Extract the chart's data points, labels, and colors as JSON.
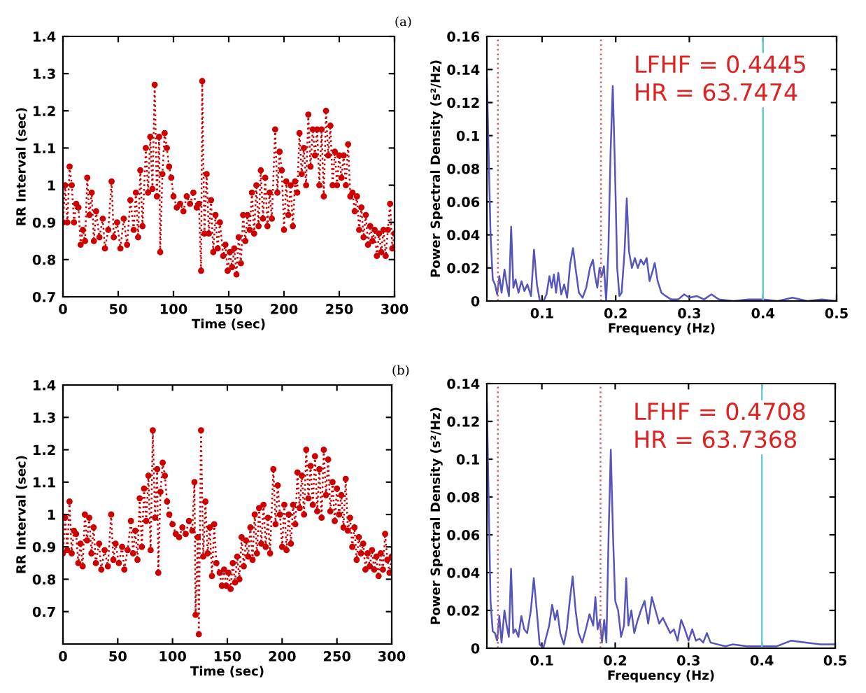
{
  "chart_data": [
    {
      "type": "line",
      "xlabel": "Time (sec)",
      "ylabel": "RR Interval (sec)",
      "annotations": [
        "(a)"
      ],
      "xlim": [
        0,
        300
      ],
      "ylim": [
        0.7,
        1.4
      ],
      "xticks": [
        0,
        50,
        100,
        150,
        200,
        250,
        300
      ],
      "yticks": [
        0.7,
        0.8,
        0.9,
        1,
        1.1,
        1.2,
        1.3,
        1.4
      ],
      "grid": false,
      "marker": "circle",
      "line_style": "dotted",
      "series": [
        {
          "color": "#cc0000",
          "x": [
            0,
            2,
            4,
            6,
            8,
            10,
            12,
            14,
            16,
            18,
            20,
            22,
            24,
            26,
            28,
            30,
            33,
            36,
            38,
            41,
            44,
            46,
            49,
            52,
            55,
            58,
            61,
            64,
            66,
            68,
            70,
            72,
            75,
            77,
            79,
            81,
            83,
            85,
            87,
            88,
            90,
            92,
            94,
            96,
            98,
            100,
            103,
            106,
            109,
            112,
            115,
            118,
            121,
            123,
            125,
            126,
            128,
            130,
            132,
            134,
            136,
            138,
            140,
            142,
            145,
            147,
            149,
            151,
            153,
            155,
            157,
            159,
            161,
            163,
            165,
            167,
            169,
            171,
            173,
            175,
            177,
            179,
            181,
            183,
            185,
            187,
            189,
            192,
            194,
            196,
            198,
            200,
            202,
            204,
            206,
            208,
            210,
            212,
            214,
            216,
            218,
            220,
            222,
            224,
            226,
            228,
            230,
            232,
            234,
            236,
            238,
            240,
            242,
            244,
            246,
            248,
            250,
            252,
            254,
            256,
            258,
            260,
            262,
            264,
            266,
            268,
            270,
            272,
            274,
            276,
            278,
            280,
            282,
            284,
            286,
            288,
            290,
            292,
            294,
            296,
            298,
            300
          ],
          "values": [
            0.9,
            1.0,
            0.9,
            1.05,
            1.0,
            0.9,
            0.95,
            0.94,
            0.84,
            0.88,
            0.85,
            1.02,
            0.92,
            0.98,
            0.85,
            0.93,
            0.86,
            0.91,
            0.83,
            0.88,
            1.01,
            0.86,
            0.9,
            0.83,
            0.91,
            0.84,
            0.96,
            0.88,
            0.98,
            0.86,
            1.04,
            0.89,
            1.1,
            0.98,
            1.13,
            0.99,
            1.27,
            0.97,
            1.13,
            0.82,
            1.03,
            1.14,
            1.1,
            1.05,
            1.02,
            0.97,
            0.94,
            0.95,
            0.93,
            0.97,
            0.95,
            0.98,
            0.94,
            0.95,
            0.77,
            1.28,
            0.87,
            1.03,
            0.87,
            0.96,
            0.82,
            0.92,
            0.83,
            0.9,
            0.81,
            0.84,
            0.77,
            0.82,
            0.78,
            0.83,
            0.76,
            0.86,
            0.79,
            0.92,
            0.85,
            0.92,
            0.88,
            0.98,
            0.87,
            1.0,
            0.89,
            1.04,
            0.91,
            1.02,
            0.89,
            0.98,
            0.91,
            1.15,
            0.98,
            1.09,
            1.04,
            0.88,
            1.01,
            0.92,
            1.0,
            0.89,
            1.01,
            0.98,
            1.14,
            1.03,
            1.1,
            1.0,
            1.19,
            1.05,
            1.15,
            1.08,
            1.15,
            1.0,
            1.15,
            0.97,
            1.2,
            1.08,
            1.16,
            1.0,
            1.09,
            1.0,
            1.08,
            1.02,
            1.08,
            1.0,
            1.11,
            0.97,
            0.98,
            0.93,
            0.97,
            0.88,
            0.94,
            0.86,
            0.92,
            0.84,
            0.89,
            0.85,
            0.88,
            0.81,
            0.87,
            0.82,
            0.88,
            0.81,
            0.88,
            0.95,
            0.83,
            0.87
          ]
        }
      ]
    },
    {
      "type": "line",
      "xlabel": "Frequency (Hz)",
      "ylabel": "Power Spectral Density (s²/Hz)",
      "annotations": [
        "LFHF = 0.4445\nHR = 63.7474"
      ],
      "xlim": [
        0.025,
        0.5
      ],
      "ylim": [
        0,
        0.16
      ],
      "xticks": [
        0.1,
        0.2,
        0.3,
        0.4,
        0.5
      ],
      "yticks": [
        0,
        0.02,
        0.04,
        0.06,
        0.08,
        0.1,
        0.12,
        0.14,
        0.16
      ],
      "grid": false,
      "line_style": "solid",
      "ref_lines": [
        {
          "axis": "x",
          "value": 0.04,
          "color": "#cc6666",
          "line_style": "dotted"
        },
        {
          "axis": "x",
          "value": 0.18,
          "color": "#cc6666",
          "line_style": "dotted"
        },
        {
          "axis": "x",
          "value": 0.4,
          "color": "#66cccc",
          "line_style": "solid"
        }
      ],
      "series": [
        {
          "color": "#5555bb",
          "x": [
            0.025,
            0.03,
            0.033,
            0.036,
            0.039,
            0.042,
            0.045,
            0.049,
            0.052,
            0.055,
            0.058,
            0.061,
            0.064,
            0.068,
            0.072,
            0.076,
            0.08,
            0.085,
            0.089,
            0.093,
            0.097,
            0.102,
            0.106,
            0.11,
            0.113,
            0.116,
            0.119,
            0.122,
            0.126,
            0.13,
            0.134,
            0.138,
            0.142,
            0.146,
            0.15,
            0.155,
            0.16,
            0.165,
            0.169,
            0.172,
            0.175,
            0.178,
            0.181,
            0.184,
            0.187,
            0.19,
            0.193,
            0.196,
            0.199,
            0.202,
            0.205,
            0.208,
            0.212,
            0.215,
            0.218,
            0.222,
            0.226,
            0.23,
            0.234,
            0.238,
            0.242,
            0.246,
            0.25,
            0.253,
            0.257,
            0.262,
            0.268,
            0.275,
            0.285,
            0.293,
            0.3,
            0.31,
            0.32,
            0.33,
            0.34,
            0.36,
            0.38,
            0.4,
            0.42,
            0.44,
            0.46,
            0.48,
            0.5
          ],
          "values": [
            0.135,
            0.04,
            0.013,
            0.01,
            0.004,
            0.015,
            0.005,
            0.019,
            0.01,
            0.003,
            0.045,
            0.008,
            0.013,
            0.005,
            0.012,
            0.006,
            0.01,
            0.003,
            0.031,
            0.01,
            0.0,
            0.0,
            0.004,
            0.015,
            0.008,
            0.016,
            0.005,
            0.017,
            0.004,
            0.01,
            0.002,
            0.022,
            0.032,
            0.018,
            0.005,
            0.002,
            0.008,
            0.02,
            0.025,
            0.015,
            0.008,
            0.02,
            0.015,
            0.021,
            0.0,
            0.03,
            0.09,
            0.13,
            0.08,
            0.02,
            0.003,
            0.005,
            0.03,
            0.062,
            0.03,
            0.02,
            0.026,
            0.02,
            0.025,
            0.022,
            0.026,
            0.012,
            0.018,
            0.023,
            0.012,
            0.005,
            0.003,
            0.001,
            0.001,
            0.004,
            0.002,
            0.003,
            0.001,
            0.004,
            0.001,
            0.0,
            0.001,
            0.001,
            0.0,
            0.002,
            0.0,
            0.001,
            0.0
          ]
        }
      ]
    },
    {
      "type": "line",
      "xlabel": "Time (sec)",
      "ylabel": "RR Interval (sec)",
      "annotations": [
        "(b)"
      ],
      "xlim": [
        0,
        300
      ],
      "ylim": [
        0.6,
        1.4
      ],
      "xticks": [
        0,
        50,
        100,
        150,
        200,
        250,
        300
      ],
      "yticks": [
        0.7,
        0.8,
        0.9,
        1,
        1.1,
        1.2,
        1.3,
        1.4
      ],
      "grid": false,
      "marker": "circle",
      "line_style": "dotted",
      "series": [
        {
          "color": "#cc0000",
          "x": [
            0,
            2,
            4,
            6,
            8,
            10,
            12,
            14,
            16,
            18,
            20,
            22,
            24,
            26,
            28,
            30,
            33,
            35,
            38,
            41,
            44,
            46,
            48,
            51,
            54,
            56,
            59,
            62,
            64,
            66,
            68,
            70,
            72,
            74,
            76,
            78,
            80,
            82,
            84,
            86,
            87,
            89,
            91,
            93,
            95,
            97,
            100,
            103,
            106,
            109,
            112,
            115,
            118,
            120,
            121,
            123,
            124,
            126,
            128,
            130,
            132,
            134,
            136,
            138,
            140,
            143,
            145,
            147,
            149,
            151,
            153,
            155,
            157,
            159,
            161,
            163,
            165,
            167,
            169,
            171,
            173,
            175,
            177,
            179,
            181,
            183,
            185,
            187,
            189,
            192,
            194,
            196,
            198,
            200,
            202,
            204,
            206,
            208,
            210,
            212,
            214,
            216,
            218,
            220,
            222,
            224,
            226,
            228,
            230,
            232,
            234,
            236,
            238,
            240,
            242,
            244,
            246,
            248,
            250,
            252,
            254,
            256,
            258,
            260,
            262,
            264,
            266,
            268,
            270,
            272,
            274,
            276,
            278,
            280,
            282,
            284,
            286,
            288,
            290,
            292,
            294,
            296,
            298,
            300
          ],
          "values": [
            0.88,
            0.99,
            0.89,
            1.04,
            0.88,
            0.95,
            0.94,
            0.85,
            0.91,
            0.84,
            1.0,
            0.92,
            0.99,
            0.88,
            0.96,
            0.85,
            0.91,
            0.83,
            0.89,
            0.84,
            1.0,
            0.86,
            0.91,
            0.85,
            0.9,
            0.83,
            0.89,
            0.98,
            0.88,
            0.95,
            0.86,
            1.05,
            0.9,
            1.08,
            0.98,
            1.12,
            0.89,
            1.26,
            0.99,
            1.14,
            0.82,
            1.07,
            1.16,
            1.12,
            1.04,
            1.0,
            0.97,
            0.94,
            0.93,
            0.96,
            0.94,
            0.98,
            0.95,
            1.1,
            0.69,
            0.93,
            0.63,
            1.26,
            0.87,
            1.04,
            0.88,
            0.96,
            0.81,
            0.97,
            0.85,
            0.82,
            0.78,
            0.83,
            0.78,
            0.82,
            0.77,
            0.85,
            0.79,
            0.87,
            0.8,
            0.93,
            0.84,
            0.92,
            0.87,
            0.96,
            0.86,
            1.0,
            0.88,
            1.02,
            0.91,
            1.03,
            0.9,
            0.99,
            0.88,
            1.14,
            0.97,
            1.09,
            1.0,
            0.9,
            1.03,
            0.89,
            1.0,
            0.91,
            1.03,
            0.97,
            1.13,
            1.02,
            1.12,
            1.0,
            1.2,
            1.05,
            1.15,
            1.03,
            1.18,
            1.01,
            1.14,
            0.99,
            1.2,
            1.06,
            1.17,
            1.01,
            1.1,
            0.98,
            1.08,
            1.0,
            1.06,
            0.96,
            1.11,
            0.95,
            0.99,
            0.9,
            0.96,
            0.86,
            0.93,
            0.88,
            0.91,
            0.83,
            0.88,
            0.84,
            0.89,
            0.83,
            0.87,
            0.81,
            0.88,
            0.83,
            0.94,
            0.86,
            0.82,
            0.87
          ]
        }
      ]
    },
    {
      "type": "line",
      "xlabel": "Frequency (Hz)",
      "ylabel": "Power Spectral Density (s²/Hz)",
      "annotations": [
        "LFHF = 0.4708\nHR = 63.7368"
      ],
      "xlim": [
        0.025,
        0.5
      ],
      "ylim": [
        0,
        0.14
      ],
      "xticks": [
        0.1,
        0.2,
        0.3,
        0.4,
        0.5
      ],
      "yticks": [
        0,
        0.02,
        0.04,
        0.06,
        0.08,
        0.1,
        0.12,
        0.14
      ],
      "grid": false,
      "line_style": "solid",
      "ref_lines": [
        {
          "axis": "x",
          "value": 0.04,
          "color": "#cc6666",
          "line_style": "dotted"
        },
        {
          "axis": "x",
          "value": 0.18,
          "color": "#cc6666",
          "line_style": "dotted"
        },
        {
          "axis": "x",
          "value": 0.4,
          "color": "#66cccc",
          "line_style": "solid"
        }
      ],
      "series": [
        {
          "color": "#5555bb",
          "x": [
            0.025,
            0.03,
            0.033,
            0.036,
            0.039,
            0.042,
            0.045,
            0.049,
            0.052,
            0.055,
            0.058,
            0.061,
            0.064,
            0.068,
            0.072,
            0.076,
            0.08,
            0.085,
            0.089,
            0.093,
            0.097,
            0.102,
            0.106,
            0.11,
            0.114,
            0.118,
            0.121,
            0.125,
            0.13,
            0.134,
            0.138,
            0.142,
            0.146,
            0.15,
            0.155,
            0.16,
            0.165,
            0.17,
            0.173,
            0.176,
            0.179,
            0.182,
            0.185,
            0.188,
            0.191,
            0.194,
            0.197,
            0.2,
            0.204,
            0.208,
            0.212,
            0.215,
            0.218,
            0.222,
            0.226,
            0.23,
            0.235,
            0.24,
            0.245,
            0.25,
            0.255,
            0.26,
            0.265,
            0.27,
            0.275,
            0.28,
            0.285,
            0.29,
            0.295,
            0.3,
            0.305,
            0.31,
            0.315,
            0.32,
            0.325,
            0.33,
            0.34,
            0.35,
            0.36,
            0.38,
            0.4,
            0.42,
            0.44,
            0.46,
            0.48,
            0.5
          ],
          "values": [
            0.13,
            0.025,
            0.009,
            0.008,
            0.004,
            0.017,
            0.003,
            0.02,
            0.012,
            0.006,
            0.042,
            0.008,
            0.01,
            0.006,
            0.017,
            0.01,
            0.008,
            0.02,
            0.037,
            0.02,
            0.002,
            0.0,
            0.006,
            0.012,
            0.023,
            0.015,
            0.02,
            0.008,
            0.002,
            0.01,
            0.025,
            0.038,
            0.02,
            0.008,
            0.003,
            0.01,
            0.018,
            0.012,
            0.027,
            0.01,
            0.015,
            0.003,
            0.015,
            0.003,
            0.06,
            0.105,
            0.06,
            0.025,
            0.02,
            0.006,
            0.012,
            0.037,
            0.012,
            0.02,
            0.008,
            0.014,
            0.02,
            0.025,
            0.013,
            0.027,
            0.02,
            0.013,
            0.016,
            0.012,
            0.008,
            0.01,
            0.004,
            0.015,
            0.01,
            0.004,
            0.01,
            0.004,
            0.005,
            0.003,
            0.008,
            0.003,
            0.002,
            0.001,
            0.002,
            0.001,
            0.001,
            0.001,
            0.004,
            0.003,
            0.002,
            0.002
          ]
        }
      ]
    }
  ]
}
